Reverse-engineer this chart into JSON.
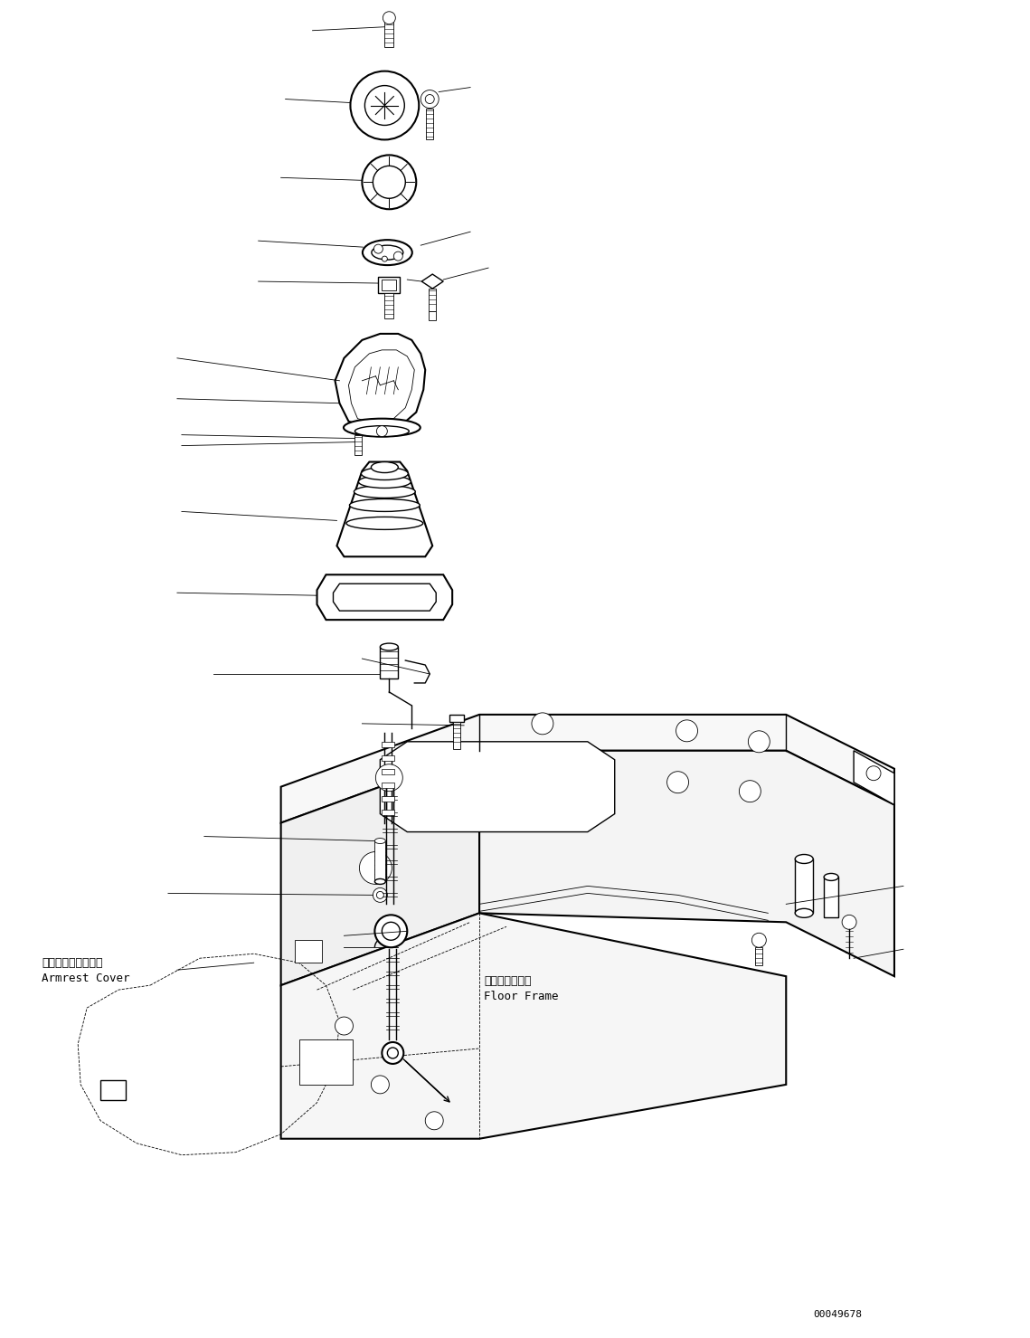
{
  "background_color": "#ffffff",
  "line_color": "#000000",
  "figure_width": 11.39,
  "figure_height": 14.79,
  "dpi": 100,
  "part_id": "00049678",
  "ann_armrest_jp": "アームレストカバー",
  "ann_armrest_en": "Armrest Cover",
  "ann_floor_jp": "フロアフレーム",
  "ann_floor_en": "Floor Frame"
}
